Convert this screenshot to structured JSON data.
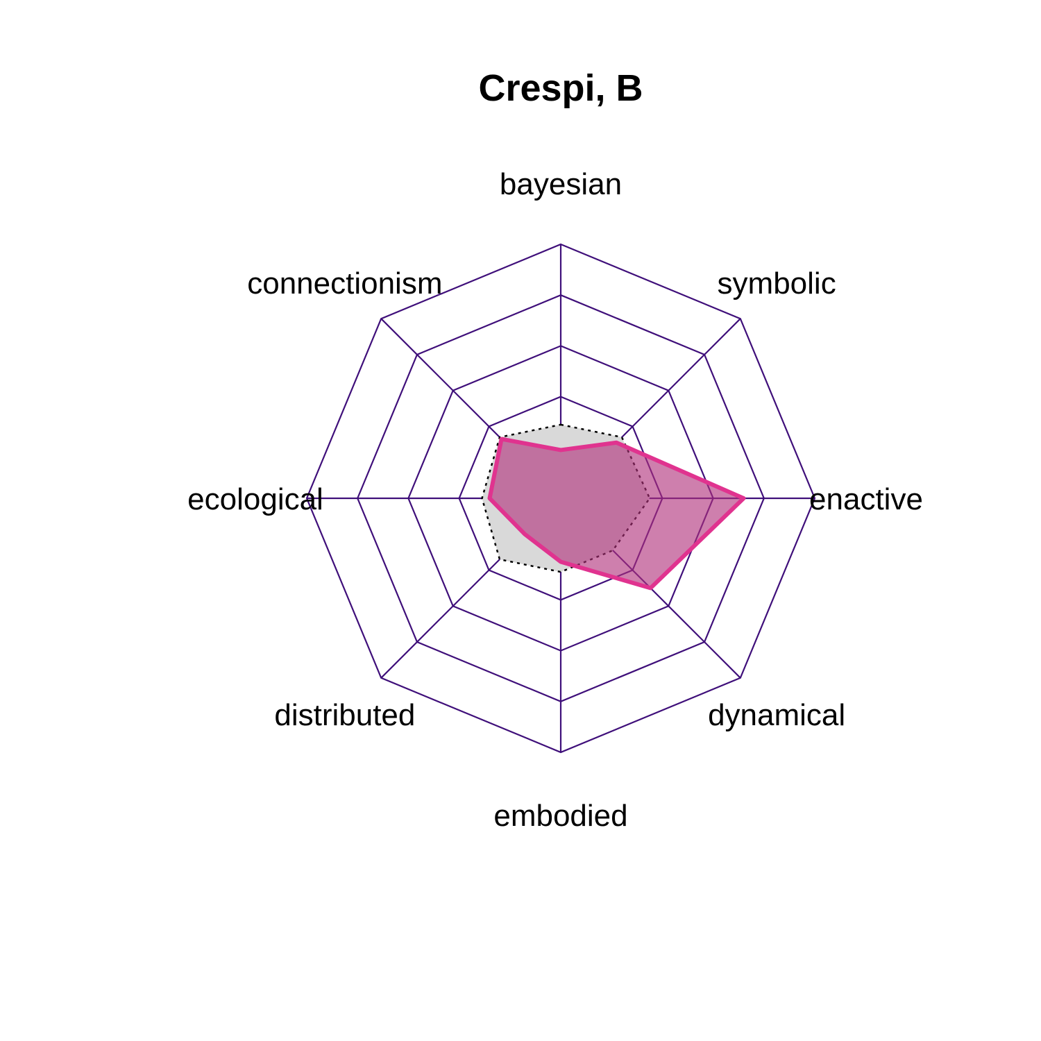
{
  "chart_data": {
    "type": "radar",
    "title": "Crespi, B",
    "axes": [
      "bayesian",
      "symbolic",
      "enactive",
      "dynamical",
      "embodied",
      "distributed",
      "ecological",
      "connectionism"
    ],
    "rings": 5,
    "range": [
      0,
      1
    ],
    "series": [
      {
        "role": "reference",
        "values": [
          0.29,
          0.34,
          0.35,
          0.29,
          0.29,
          0.34,
          0.31,
          0.34
        ],
        "style": "dotted",
        "fill": "#d9d9d9",
        "stroke": "#000000"
      },
      {
        "role": "subject",
        "values": [
          0.19,
          0.31,
          0.72,
          0.5,
          0.25,
          0.2,
          0.28,
          0.33
        ],
        "style": "solid",
        "fill": "#b0307a",
        "fill_opacity": 0.62,
        "stroke": "#e0338f"
      }
    ],
    "grid_color": "#3f0f7a"
  }
}
